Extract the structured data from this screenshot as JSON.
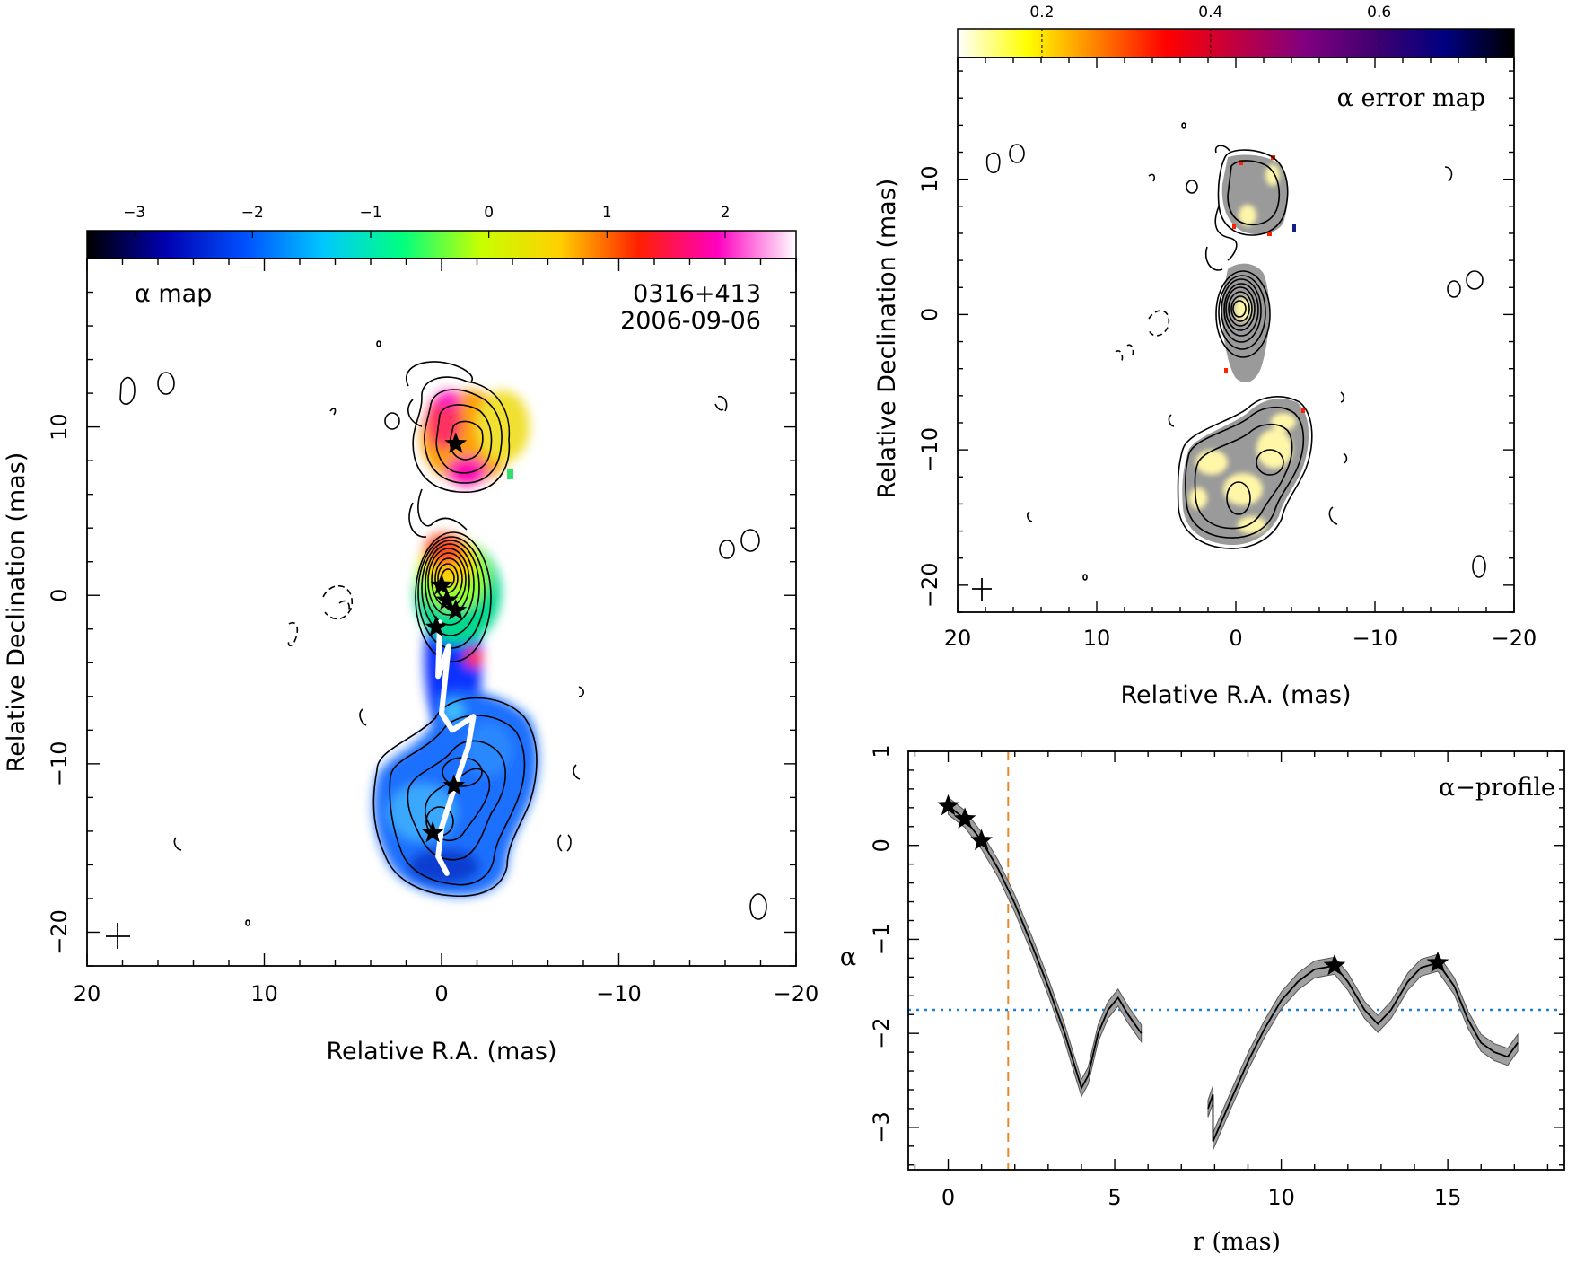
{
  "chart_data": [
    {
      "type": "heatmap",
      "panel": "alpha-map",
      "title": "α map",
      "source": "0316+413",
      "date": "2006-09-06",
      "xlabel": "Relative R.A. (mas)",
      "ylabel": "Relative Declination (mas)",
      "xlim": [
        20,
        -20
      ],
      "ylim": [
        -22,
        20
      ],
      "x_ticks": [
        20,
        10,
        0,
        -10,
        -20
      ],
      "y_ticks": [
        10,
        0,
        -10,
        -20
      ],
      "colorbar": {
        "range": [
          -3.4,
          2.6
        ],
        "ticks": [
          -3,
          -2,
          -1,
          0,
          1,
          2
        ],
        "colormap": [
          "#000000",
          "#0000b0",
          "#0050ff",
          "#00c8ff",
          "#00ff80",
          "#c8ff00",
          "#ffd000",
          "#ff2000",
          "#ff00c0",
          "#ffffff"
        ]
      },
      "components": [
        {
          "x": -0.8,
          "y": 9.0
        },
        {
          "x": 0.0,
          "y": 0.6
        },
        {
          "x": -0.3,
          "y": -0.3
        },
        {
          "x": -0.8,
          "y": -0.9
        },
        {
          "x": 0.3,
          "y": -1.9
        },
        {
          "x": -0.7,
          "y": -11.3
        },
        {
          "x": 0.5,
          "y": -14.1
        }
      ],
      "ridge_line": {
        "x": [
          0.1,
          0.2,
          -0.4,
          0.0,
          -0.6,
          -1.8,
          -1.5,
          -0.7,
          0.0,
          0.2,
          -0.3
        ],
        "y": [
          -1.6,
          -4.8,
          -3.0,
          -7.0,
          -8.0,
          -7.2,
          -9.0,
          -11.5,
          -13.8,
          -15.5,
          -16.5
        ]
      }
    },
    {
      "type": "heatmap",
      "panel": "alpha-error-map",
      "title": "α error map",
      "xlabel": "Relative R.A. (mas)",
      "ylabel": "Relative Declination (mas)",
      "xlim": [
        20,
        -20
      ],
      "ylim": [
        -22,
        19
      ],
      "x_ticks": [
        20,
        10,
        0,
        -10,
        -20
      ],
      "y_ticks": [
        10,
        0,
        -10,
        -20
      ],
      "colorbar": {
        "range": [
          0.1,
          0.76
        ],
        "ticks": [
          0.2,
          0.4,
          0.6
        ],
        "colormap": [
          "#ffffff",
          "#ffff00",
          "#ff8000",
          "#ff0000",
          "#c00040",
          "#800080",
          "#400070",
          "#000080",
          "#000000"
        ]
      }
    },
    {
      "type": "line",
      "panel": "alpha-profile",
      "title": "α−profile",
      "xlabel": "r (mas)",
      "ylabel": "α",
      "xlim": [
        -1.2,
        18.5
      ],
      "ylim": [
        -3.45,
        1.0
      ],
      "x_ticks": [
        0,
        5,
        10,
        15
      ],
      "y_ticks": [
        1,
        0,
        -1,
        -2,
        -3
      ],
      "series": [
        {
          "x": [
            0,
            0.5,
            1.0,
            1.5,
            2.0,
            2.5,
            3.0,
            3.5,
            3.8,
            4.0,
            4.2,
            4.5,
            4.8,
            5.1,
            5.4,
            5.8
          ],
          "y": [
            0.42,
            0.28,
            0.05,
            -0.25,
            -0.62,
            -1.05,
            -1.5,
            -2.0,
            -2.35,
            -2.58,
            -2.45,
            -2.0,
            -1.75,
            -1.62,
            -1.8,
            -2.0
          ]
        },
        {
          "x": [
            7.8,
            7.95,
            7.95,
            8.5,
            9.0,
            9.5,
            10.0,
            10.5,
            11.0,
            11.6,
            12.0,
            12.5,
            12.9,
            13.3,
            13.8,
            14.2,
            14.7,
            15.2,
            15.6,
            16.0,
            16.4,
            16.8,
            17.1
          ],
          "y": [
            -2.8,
            -2.65,
            -3.15,
            -2.7,
            -2.3,
            -1.95,
            -1.65,
            -1.45,
            -1.32,
            -1.28,
            -1.45,
            -1.75,
            -1.9,
            -1.75,
            -1.45,
            -1.3,
            -1.25,
            -1.5,
            -1.85,
            -2.1,
            -2.2,
            -2.25,
            -2.1
          ]
        }
      ],
      "markers": {
        "x": [
          0,
          0.5,
          1.0,
          11.6,
          14.7
        ],
        "y": [
          0.42,
          0.28,
          0.05,
          -1.28,
          -1.25
        ]
      },
      "reference_lines": [
        {
          "orientation": "vertical",
          "value": 1.8,
          "style": "dashed",
          "color": "#e8882a"
        },
        {
          "orientation": "horizontal",
          "value": -1.75,
          "style": "dotted",
          "color": "#1f7fd0"
        }
      ]
    }
  ]
}
